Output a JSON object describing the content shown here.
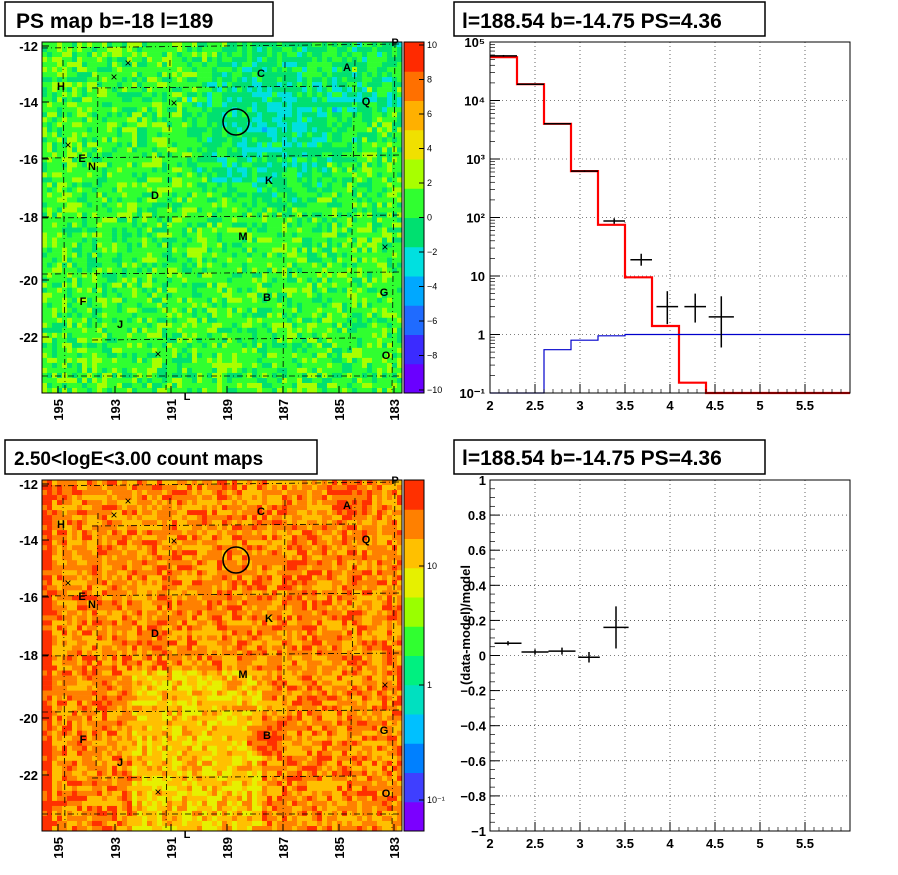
{
  "panels": {
    "ps_map": {
      "title": "PS map b=-18 l=189",
      "colorbar_ticks": [
        "10",
        "8",
        "6",
        "4",
        "2",
        "0",
        "−2",
        "−4",
        "−6",
        "−8",
        "−10"
      ],
      "colorscale": [
        "#6a00ff",
        "#3b2bff",
        "#1f6bff",
        "#00a8ff",
        "#00e0e0",
        "#00e070",
        "#30ff30",
        "#a8ff00",
        "#f0e000",
        "#ffb000",
        "#ff7000",
        "#ff2a00"
      ]
    },
    "count_map": {
      "title": "2.50<logE<3.00 count maps",
      "colorbar_ticks": [
        "10",
        "1",
        "10⁻¹"
      ],
      "colorscale": [
        "#7b00ff",
        "#3f3fff",
        "#0080ff",
        "#00c0ff",
        "#00e0c0",
        "#00f080",
        "#30ff30",
        "#9aff00",
        "#e6f000",
        "#ffc000",
        "#ff8000",
        "#ff3000"
      ]
    },
    "spectrum": {
      "title": "l=188.54 b=-14.75 PS=4.36"
    },
    "residual": {
      "title": "l=188.54 b=-14.75 PS=4.36"
    }
  },
  "map_axes": {
    "y_ticks": [
      "-12",
      "-14",
      "-16",
      "-18",
      "-20",
      "-22"
    ],
    "x_ticks": [
      "195",
      "193",
      "191",
      "189",
      "187",
      "185",
      "183"
    ],
    "corner_labels": [
      "P",
      "L"
    ]
  },
  "map_markers": {
    "source_labels": [
      "A",
      "B",
      "C",
      "D",
      "E",
      "F",
      "G",
      "H",
      "J",
      "K",
      "M",
      "N",
      "O",
      "Q"
    ],
    "cross_symbol": "×"
  },
  "chart_data": [
    {
      "type": "line",
      "subtype": "step histogram with error bars",
      "title": "l=188.54 b=-14.75 PS=4.36",
      "xlabel": "",
      "ylabel": "",
      "xlim": [
        2,
        6
      ],
      "ylim": [
        0.1,
        100000
      ],
      "y_scale": "log",
      "grid": true,
      "x_tick_labels": [
        "2",
        "2.5",
        "3",
        "3.5",
        "4",
        "4.5",
        "5",
        "5.5"
      ],
      "y_tick_labels": [
        "10⁻¹",
        "1",
        "10",
        "10²",
        "10³",
        "10⁴",
        "10⁵"
      ],
      "colors": {
        "total_model": "#ff0000",
        "source_model": "#0000cc",
        "data": "#000000"
      },
      "series": [
        {
          "role": "total_model",
          "bin_edges": [
            2,
            2.3,
            2.6,
            2.9,
            3.2,
            3.5,
            3.8,
            4.1,
            4.4,
            4.7,
            5.0,
            5.3,
            5.6,
            6.0
          ],
          "values": [
            55000,
            19000,
            4000,
            620,
            75,
            9.5,
            1.4,
            0.15,
            0.1,
            0.1,
            0.1,
            0.1,
            0.1
          ]
        },
        {
          "role": "source_model",
          "bin_edges": [
            2,
            2.3,
            2.6,
            2.9,
            3.2,
            3.5,
            3.8,
            4.1,
            4.4,
            4.7,
            5.0,
            5.3,
            5.6,
            6.0
          ],
          "values": [
            0.1,
            0.1,
            0.55,
            0.8,
            0.95,
            1.0,
            1.0,
            1.0,
            1.0,
            1.0,
            1.0,
            1.0,
            1.0
          ]
        },
        {
          "role": "data",
          "points": [
            {
              "x": 2.15,
              "xerr": 0.15,
              "y": 58000,
              "ylo": 56000,
              "yhi": 60000
            },
            {
              "x": 2.45,
              "xerr": 0.15,
              "y": 19000,
              "ylo": 18500,
              "yhi": 19500
            },
            {
              "x": 2.75,
              "xerr": 0.15,
              "y": 4000,
              "ylo": 3900,
              "yhi": 4100
            },
            {
              "x": 3.05,
              "xerr": 0.15,
              "y": 620,
              "ylo": 600,
              "yhi": 640
            },
            {
              "x": 3.38,
              "xerr": 0.12,
              "y": 87,
              "ylo": 78,
              "yhi": 97
            },
            {
              "x": 3.68,
              "xerr": 0.12,
              "y": 19,
              "ylo": 15,
              "yhi": 24
            },
            {
              "x": 3.97,
              "xerr": 0.12,
              "y": 3.0,
              "ylo": 1.5,
              "yhi": 5.5
            },
            {
              "x": 4.28,
              "xerr": 0.12,
              "y": 3.0,
              "ylo": 1.6,
              "yhi": 5.0
            },
            {
              "x": 4.57,
              "xerr": 0.14,
              "y": 2.0,
              "ylo": 0.6,
              "yhi": 4.5
            }
          ]
        }
      ]
    },
    {
      "type": "scatter",
      "subtype": "points with error bars",
      "title": "l=188.54 b=-14.75 PS=4.36",
      "xlabel": "",
      "ylabel": "(data-model)/model",
      "xlim": [
        2,
        6
      ],
      "ylim": [
        -1,
        1
      ],
      "grid": true,
      "x_tick_labels": [
        "2",
        "2.5",
        "3",
        "3.5",
        "4",
        "4.5",
        "5",
        "5.5"
      ],
      "y_tick_labels": [
        "1",
        "0.8",
        "0.6",
        "0.4",
        "0.2",
        "0",
        "−0.2",
        "−0.4",
        "−0.6",
        "−0.8",
        "−1"
      ],
      "points": [
        {
          "x": 2.2,
          "xerr": 0.15,
          "y": 0.07,
          "yerr": 0.012
        },
        {
          "x": 2.5,
          "xerr": 0.15,
          "y": 0.02,
          "yerr": 0.015
        },
        {
          "x": 2.8,
          "xerr": 0.15,
          "y": 0.025,
          "yerr": 0.02
        },
        {
          "x": 3.1,
          "xerr": 0.12,
          "y": -0.01,
          "yerr": 0.03
        },
        {
          "x": 3.4,
          "xerr": 0.14,
          "y": 0.16,
          "yerr": 0.12
        }
      ]
    }
  ]
}
